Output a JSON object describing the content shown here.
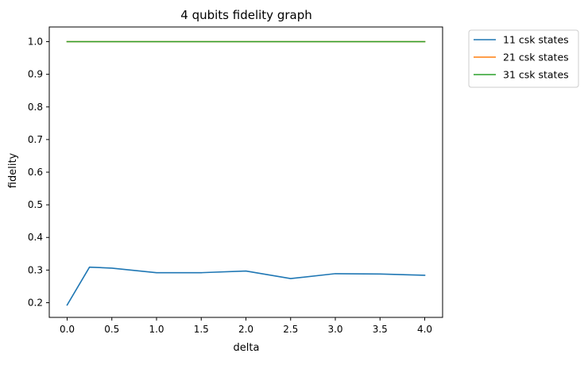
{
  "chart_data": {
    "type": "line",
    "title": "4 qubits fidelity graph",
    "xlabel": "delta",
    "ylabel": "fidelity",
    "xlim": [
      -0.2,
      4.2
    ],
    "ylim": [
      0.155,
      1.045
    ],
    "xticks": [
      0.0,
      0.5,
      1.0,
      1.5,
      2.0,
      2.5,
      3.0,
      3.5,
      4.0
    ],
    "xtick_labels": [
      "0.0",
      "0.5",
      "1.0",
      "1.5",
      "2.0",
      "2.5",
      "3.0",
      "3.5",
      "4.0"
    ],
    "yticks": [
      0.2,
      0.3,
      0.4,
      0.5,
      0.6,
      0.7,
      0.8,
      0.9,
      1.0
    ],
    "ytick_labels": [
      "0.2",
      "0.3",
      "0.4",
      "0.5",
      "0.6",
      "0.7",
      "0.8",
      "0.9",
      "1.0"
    ],
    "grid": false,
    "legend_position": "outside upper right",
    "series": [
      {
        "name": "11 csk states",
        "color": "#1f77b4",
        "x": [
          0.0,
          0.25,
          0.5,
          1.0,
          1.5,
          2.0,
          2.5,
          3.0,
          3.5,
          4.0
        ],
        "y": [
          0.193,
          0.309,
          0.306,
          0.292,
          0.292,
          0.297,
          0.274,
          0.289,
          0.288,
          0.284
        ]
      },
      {
        "name": "21 csk states",
        "color": "#ff7f0e",
        "x": [
          0.0,
          0.25,
          0.5,
          1.0,
          1.5,
          2.0,
          2.5,
          3.0,
          3.5,
          4.0
        ],
        "y": [
          1.0,
          1.0,
          1.0,
          1.0,
          1.0,
          1.0,
          1.0,
          1.0,
          1.0,
          1.0
        ]
      },
      {
        "name": "31 csk states",
        "color": "#2ca02c",
        "x": [
          0.0,
          0.25,
          0.5,
          1.0,
          1.5,
          2.0,
          2.5,
          3.0,
          3.5,
          4.0
        ],
        "y": [
          1.0,
          1.0,
          1.0,
          1.0,
          1.0,
          1.0,
          1.0,
          1.0,
          1.0,
          1.0
        ]
      }
    ]
  }
}
